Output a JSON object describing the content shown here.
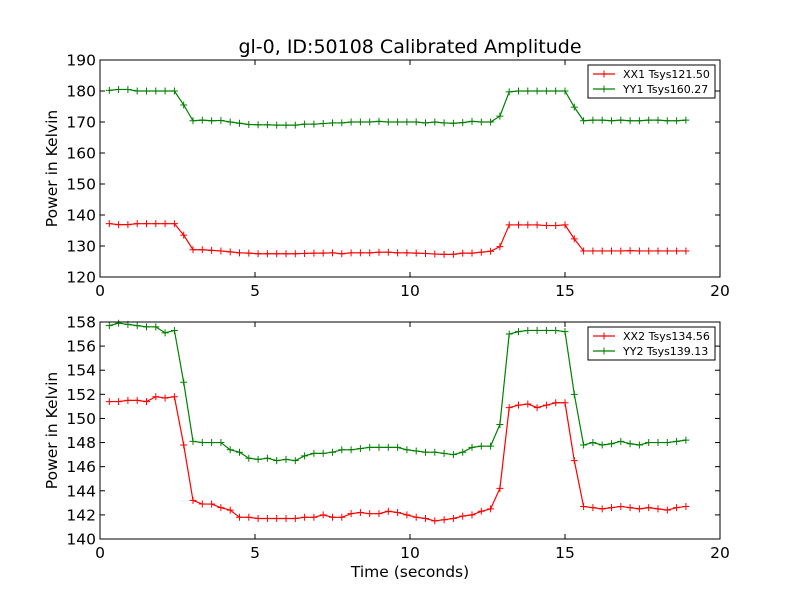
{
  "figure": {
    "title": "gl-0, ID:50108 Calibrated Amplitude",
    "xlabel": "Time (seconds)"
  },
  "chart_data": [
    {
      "type": "line",
      "title": "gl-0, ID:50108 Calibrated Amplitude",
      "xlabel": "",
      "ylabel": "Power in Kelvin",
      "xlim": [
        0,
        20
      ],
      "ylim": [
        120,
        190
      ],
      "xticks": [
        "0",
        "5",
        "10",
        "15",
        "20"
      ],
      "yticks": [
        "120",
        "130",
        "140",
        "150",
        "160",
        "170",
        "180",
        "190"
      ],
      "grid": false,
      "legend_position": "top-right",
      "x": [
        0.3,
        0.6,
        0.9,
        1.2,
        1.5,
        1.8,
        2.1,
        2.4,
        2.7,
        3.0,
        3.3,
        3.6,
        3.9,
        4.2,
        4.5,
        4.8,
        5.1,
        5.4,
        5.7,
        6.0,
        6.3,
        6.6,
        6.9,
        7.2,
        7.5,
        7.8,
        8.1,
        8.4,
        8.7,
        9.0,
        9.3,
        9.6,
        9.9,
        10.2,
        10.5,
        10.8,
        11.1,
        11.4,
        11.7,
        12.0,
        12.3,
        12.6,
        12.9,
        13.2,
        13.5,
        13.8,
        14.1,
        14.4,
        14.7,
        15.0,
        15.3,
        15.6,
        15.9,
        16.2,
        16.5,
        16.8,
        17.1,
        17.4,
        17.7,
        18.0,
        18.3,
        18.6,
        18.9
      ],
      "series": [
        {
          "name": "XX1 Tsys121.50",
          "color": "#ff0000",
          "values": [
            137.2,
            136.9,
            136.9,
            137.2,
            137.2,
            137.2,
            137.2,
            137.2,
            133.5,
            128.8,
            128.8,
            128.6,
            128.4,
            128.1,
            127.8,
            127.7,
            127.5,
            127.5,
            127.5,
            127.5,
            127.5,
            127.6,
            127.7,
            127.7,
            127.8,
            127.5,
            127.8,
            127.8,
            127.8,
            128.0,
            128.0,
            127.8,
            127.8,
            127.7,
            127.6,
            127.4,
            127.3,
            127.3,
            127.7,
            127.7,
            128.0,
            128.3,
            129.8,
            136.8,
            136.8,
            136.8,
            136.8,
            136.6,
            136.6,
            136.8,
            132.3,
            128.4,
            128.4,
            128.4,
            128.4,
            128.4,
            128.5,
            128.4,
            128.4,
            128.4,
            128.4,
            128.4,
            128.4
          ]
        },
        {
          "name": "YY1 Tsys160.27",
          "color": "#008000",
          "values": [
            180.2,
            180.5,
            180.5,
            180.0,
            180.0,
            180.0,
            180.0,
            180.0,
            175.5,
            170.4,
            170.6,
            170.4,
            170.5,
            170.0,
            169.6,
            169.2,
            169.1,
            169.1,
            169.0,
            169.0,
            169.0,
            169.3,
            169.3,
            169.5,
            169.7,
            169.7,
            170.0,
            170.0,
            170.0,
            170.2,
            170.0,
            170.0,
            170.0,
            170.0,
            169.7,
            170.0,
            169.7,
            169.6,
            169.8,
            170.2,
            170.0,
            170.0,
            171.9,
            179.7,
            180.0,
            180.0,
            180.0,
            180.0,
            180.0,
            180.0,
            174.8,
            170.4,
            170.6,
            170.6,
            170.4,
            170.6,
            170.4,
            170.4,
            170.6,
            170.6,
            170.4,
            170.4,
            170.6
          ]
        }
      ]
    },
    {
      "type": "line",
      "title": "",
      "xlabel": "Time (seconds)",
      "ylabel": "Power in Kelvin",
      "xlim": [
        0,
        20
      ],
      "ylim": [
        140,
        158
      ],
      "xticks": [
        "0",
        "5",
        "10",
        "15",
        "20"
      ],
      "yticks": [
        "140",
        "142",
        "144",
        "146",
        "148",
        "150",
        "152",
        "154",
        "156",
        "158"
      ],
      "grid": false,
      "legend_position": "top-right",
      "x": [
        0.3,
        0.6,
        0.9,
        1.2,
        1.5,
        1.8,
        2.1,
        2.4,
        2.7,
        3.0,
        3.3,
        3.6,
        3.9,
        4.2,
        4.5,
        4.8,
        5.1,
        5.4,
        5.7,
        6.0,
        6.3,
        6.6,
        6.9,
        7.2,
        7.5,
        7.8,
        8.1,
        8.4,
        8.7,
        9.0,
        9.3,
        9.6,
        9.9,
        10.2,
        10.5,
        10.8,
        11.1,
        11.4,
        11.7,
        12.0,
        12.3,
        12.6,
        12.9,
        13.2,
        13.5,
        13.8,
        14.1,
        14.4,
        14.7,
        15.0,
        15.3,
        15.6,
        15.9,
        16.2,
        16.5,
        16.8,
        17.1,
        17.4,
        17.7,
        18.0,
        18.3,
        18.6,
        18.9
      ],
      "series": [
        {
          "name": "XX2 Tsys134.56",
          "color": "#ff0000",
          "values": [
            151.4,
            151.4,
            151.5,
            151.5,
            151.4,
            151.8,
            151.7,
            151.8,
            147.8,
            143.2,
            142.9,
            142.9,
            142.6,
            142.4,
            141.8,
            141.8,
            141.7,
            141.7,
            141.7,
            141.7,
            141.7,
            141.8,
            141.8,
            142.0,
            141.8,
            141.8,
            142.1,
            142.2,
            142.1,
            142.1,
            142.3,
            142.2,
            142.0,
            141.8,
            141.7,
            141.5,
            141.6,
            141.7,
            141.9,
            142.0,
            142.3,
            142.5,
            144.2,
            150.9,
            151.1,
            151.2,
            150.9,
            151.1,
            151.3,
            151.3,
            146.5,
            142.7,
            142.6,
            142.5,
            142.6,
            142.7,
            142.6,
            142.5,
            142.6,
            142.5,
            142.4,
            142.6,
            142.7
          ]
        },
        {
          "name": "YY2 Tsys139.13",
          "color": "#008000",
          "values": [
            157.7,
            157.9,
            157.8,
            157.7,
            157.6,
            157.6,
            157.1,
            157.3,
            153.0,
            148.1,
            148.0,
            148.0,
            148.0,
            147.4,
            147.2,
            146.7,
            146.6,
            146.7,
            146.5,
            146.6,
            146.5,
            146.9,
            147.1,
            147.1,
            147.2,
            147.4,
            147.4,
            147.5,
            147.6,
            147.6,
            147.6,
            147.6,
            147.4,
            147.3,
            147.2,
            147.2,
            147.1,
            147.0,
            147.2,
            147.6,
            147.7,
            147.7,
            149.5,
            157.0,
            157.2,
            157.3,
            157.3,
            157.3,
            157.3,
            157.2,
            152.0,
            147.8,
            148.0,
            147.8,
            147.9,
            148.1,
            147.9,
            147.8,
            148.0,
            148.0,
            148.0,
            148.1,
            148.2
          ]
        }
      ]
    }
  ]
}
